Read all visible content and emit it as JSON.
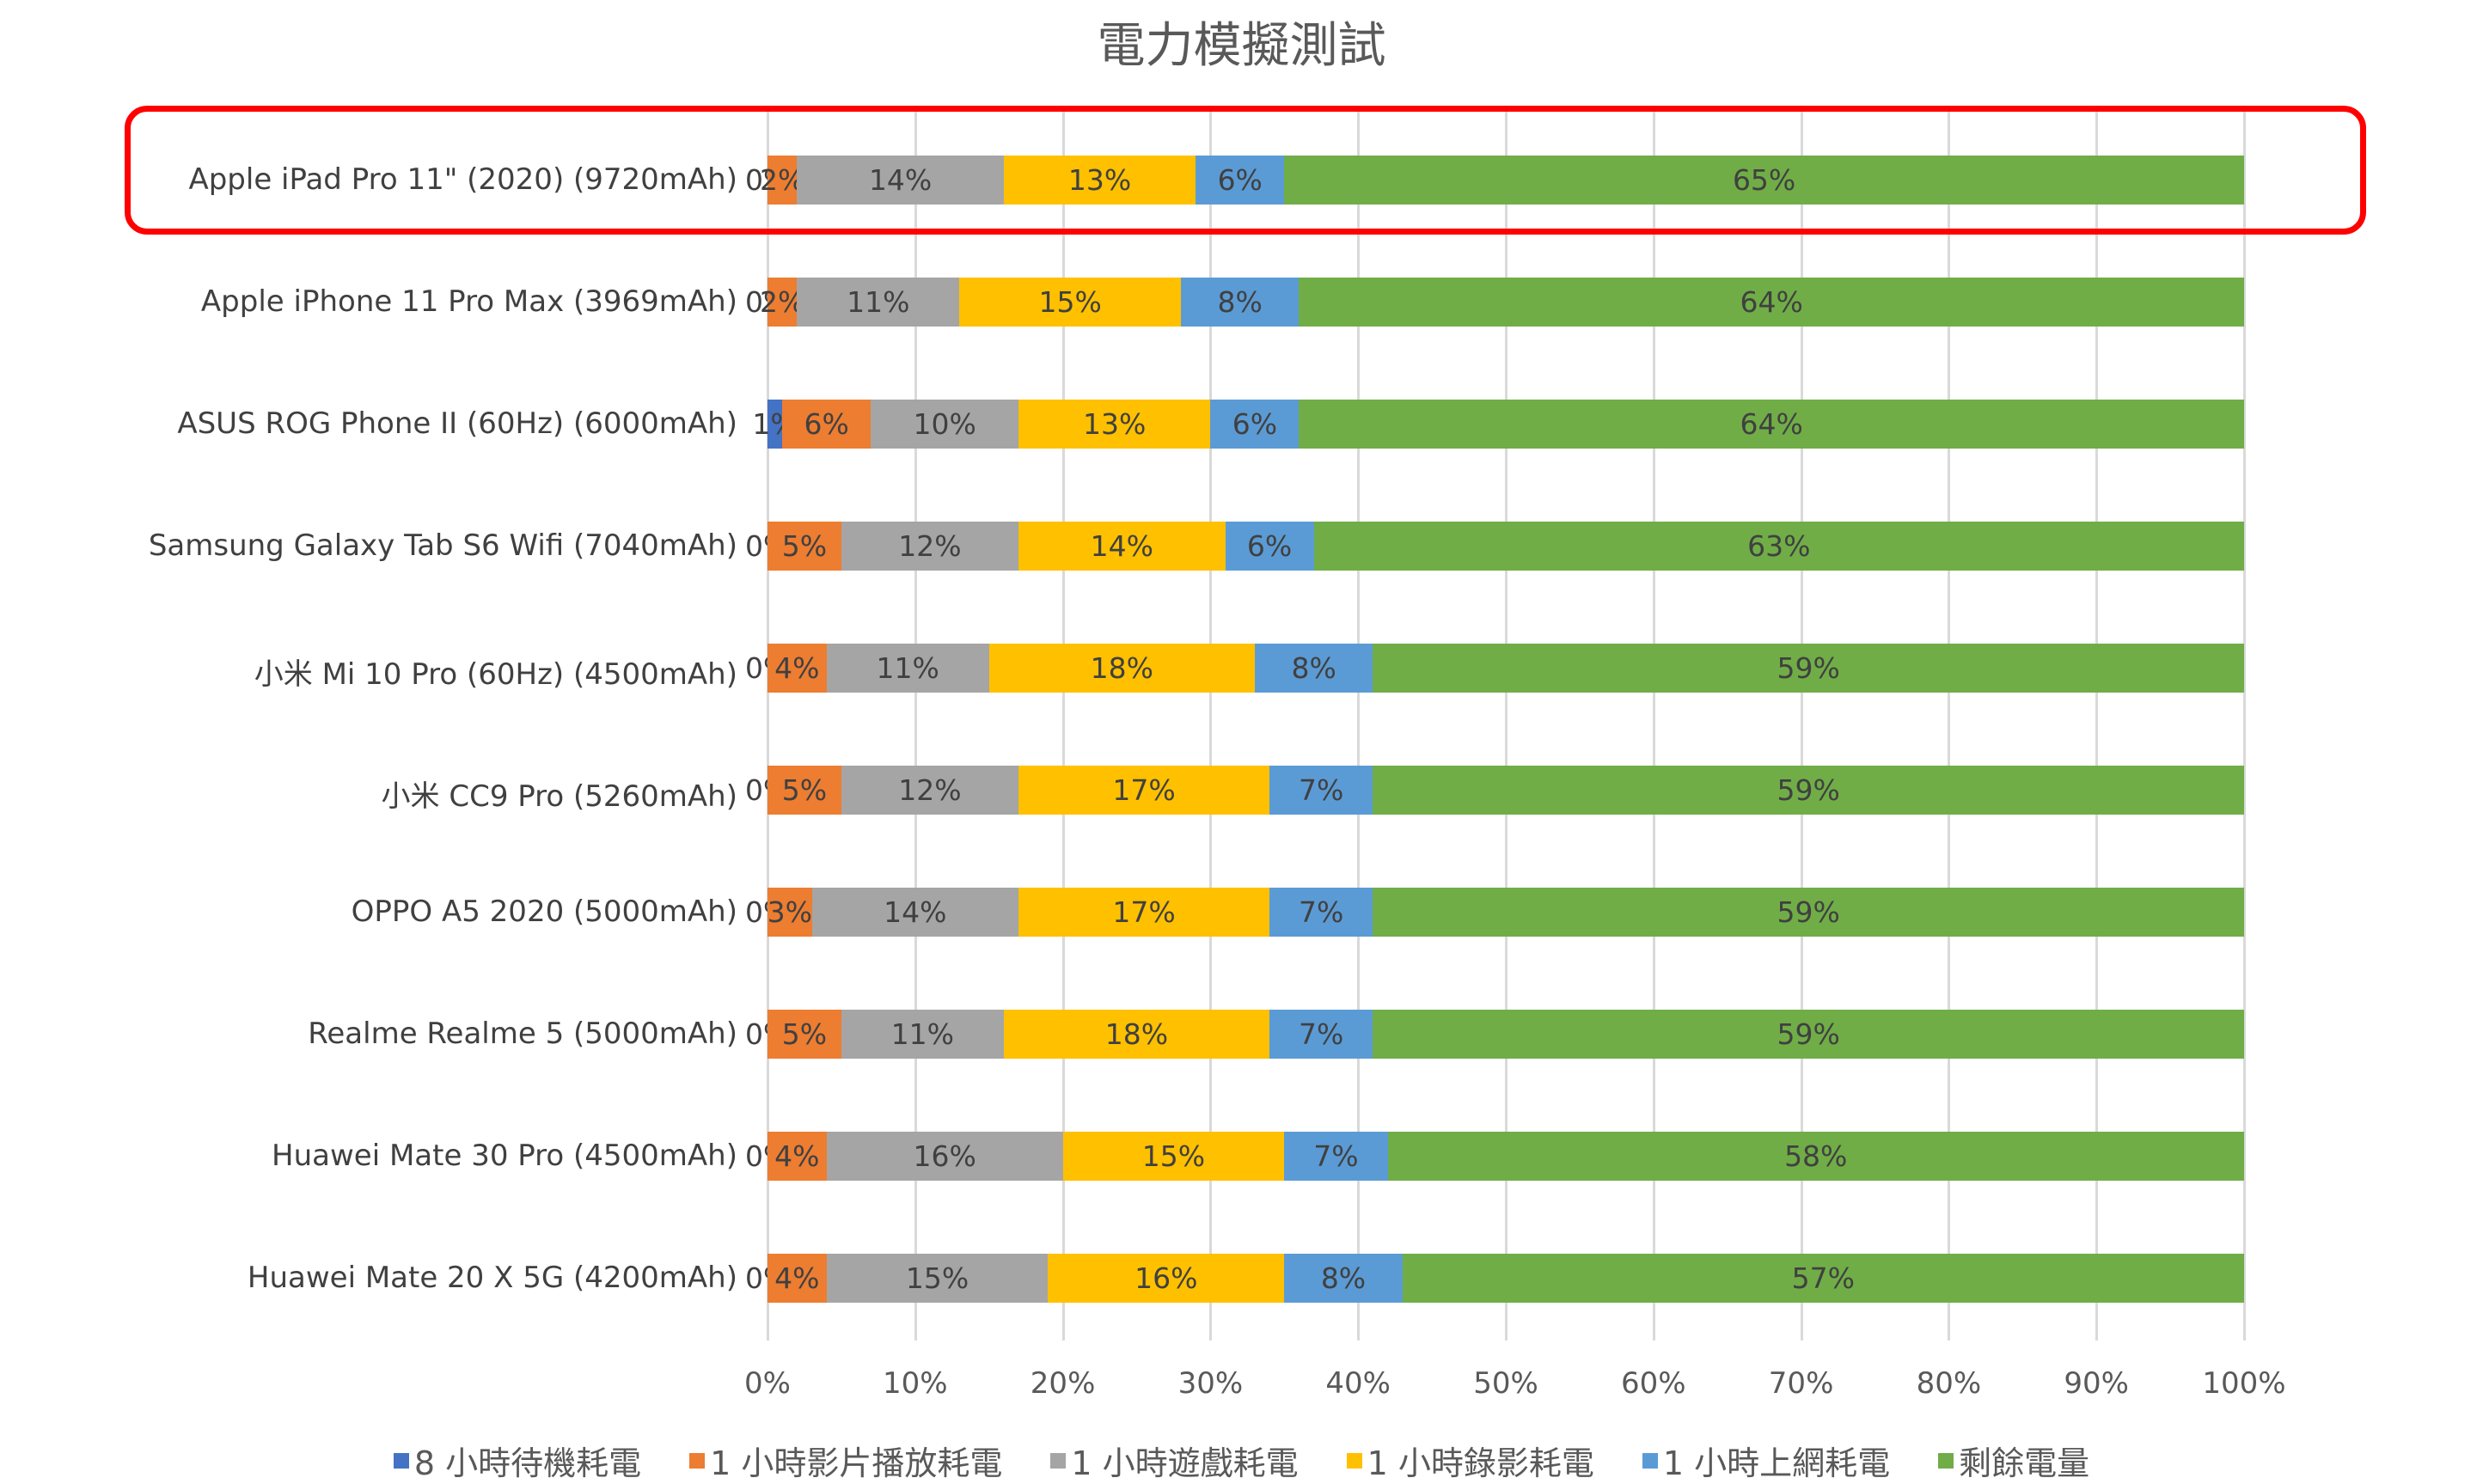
{
  "title": "電力模擬測試",
  "chart_data": {
    "type": "bar",
    "orientation": "horizontal",
    "stacked": "100%",
    "title": "電力模擬測試",
    "xlabel": "",
    "ylabel": "",
    "xlim": [
      0,
      100
    ],
    "x_ticks": [
      "0%",
      "10%",
      "20%",
      "30%",
      "40%",
      "50%",
      "60%",
      "70%",
      "80%",
      "90%",
      "100%"
    ],
    "grid": true,
    "legend_position": "bottom",
    "categories": [
      "Apple iPad Pro 11\" (2020) (9720mAh)",
      "Apple iPhone 11 Pro Max (3969mAh)",
      "ASUS ROG Phone II (60Hz) (6000mAh)",
      "Samsung Galaxy Tab S6 Wifi (7040mAh)",
      "小米 Mi 10 Pro (60Hz) (4500mAh)",
      "小米 CC9 Pro (5260mAh)",
      "OPPO A5 2020 (5000mAh)",
      "Realme Realme 5 (5000mAh)",
      "Huawei Mate 30 Pro (4500mAh)",
      "Huawei Mate 20 X 5G (4200mAh)"
    ],
    "series": [
      {
        "name": "8 小時待機耗電",
        "color": "#4472C4",
        "values": [
          0,
          0,
          1,
          0,
          0,
          0,
          0,
          0,
          0,
          0
        ]
      },
      {
        "name": "1 小時影片播放耗電",
        "color": "#ED7D31",
        "values": [
          2,
          2,
          6,
          5,
          4,
          5,
          3,
          5,
          4,
          4
        ]
      },
      {
        "name": "1 小時遊戲耗電",
        "color": "#A5A5A5",
        "values": [
          14,
          11,
          10,
          12,
          11,
          12,
          14,
          11,
          16,
          15
        ]
      },
      {
        "name": "1 小時錄影耗電",
        "color": "#FFC000",
        "values": [
          13,
          15,
          13,
          14,
          18,
          17,
          17,
          18,
          15,
          16
        ]
      },
      {
        "name": "1 小時上網耗電",
        "color": "#5B9BD5",
        "values": [
          6,
          8,
          6,
          6,
          8,
          7,
          7,
          7,
          7,
          8
        ]
      },
      {
        "name": "剩餘電量",
        "color": "#70AD47",
        "values": [
          65,
          64,
          64,
          63,
          59,
          59,
          59,
          59,
          58,
          57
        ]
      }
    ],
    "highlighted_category": "Apple iPad Pro 11\" (2020) (9720mAh)",
    "highlight_color": "#FF0000"
  }
}
